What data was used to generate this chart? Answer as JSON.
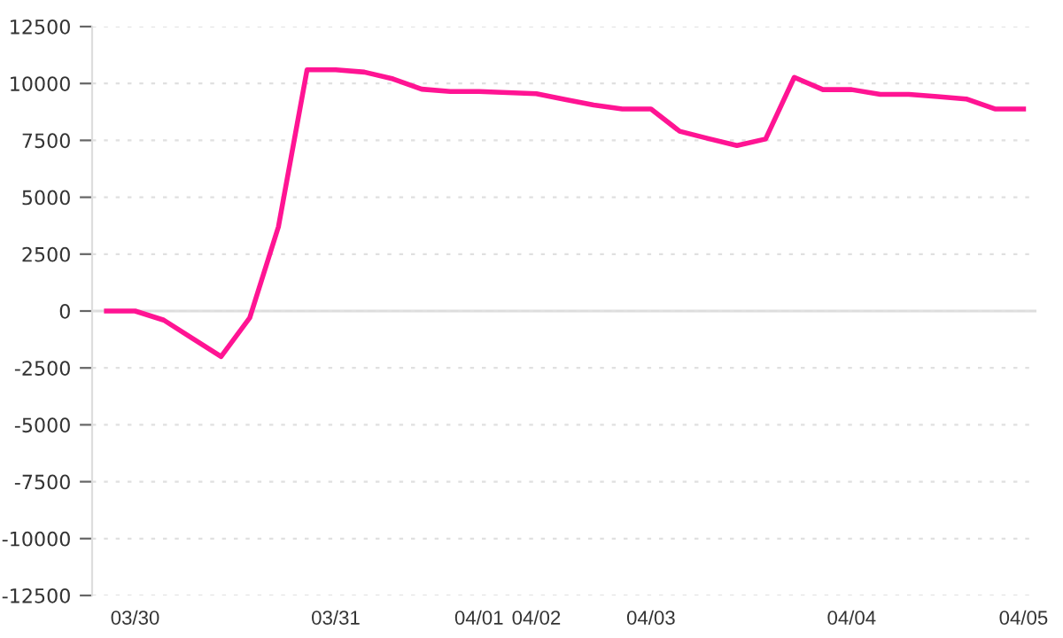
{
  "chart_data": {
    "type": "line",
    "categories": [
      null,
      "03/30",
      null,
      null,
      null,
      null,
      null,
      null,
      "03/31",
      null,
      null,
      null,
      null,
      "04/01",
      null,
      "04/02",
      null,
      null,
      null,
      "04/03",
      null,
      null,
      null,
      null,
      null,
      null,
      "04/04",
      null,
      null,
      null,
      null,
      null,
      "04/05"
    ],
    "series": [
      {
        "color": "#ff1493",
        "values": [
          0,
          0,
          -400,
          -1200,
          -2000,
          -300,
          3700,
          10600,
          10600,
          10500,
          10200,
          9750,
          9650,
          9650,
          9600,
          9550,
          9300,
          9050,
          8880,
          8880,
          7900,
          7580,
          7270,
          7560,
          10270,
          9730,
          9730,
          9520,
          9520,
          9420,
          9320,
          8880,
          8880
        ]
      }
    ],
    "ylim": [
      -12500,
      12500
    ],
    "yticks": [
      -12500,
      -10000,
      -7500,
      -5000,
      -2500,
      0,
      2500,
      5000,
      7500,
      10000,
      12500
    ],
    "grid": "y",
    "legend": false,
    "marker": "none",
    "line_style": "solid",
    "ref_lines": [
      {
        "axis": "y",
        "value": 0,
        "color": "#dddddd"
      }
    ]
  }
}
